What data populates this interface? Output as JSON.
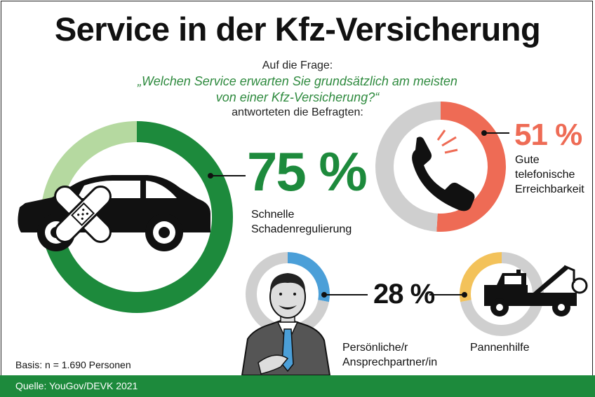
{
  "title": "Service in der Kfz-Versicherung",
  "question": {
    "intro": "Auf die Frage:",
    "line1": "„Welchen Service erwarten Sie grundsätzlich am meisten",
    "line2": "von einer Kfz-Versicherung?“",
    "outro": "antworteten die Befragten:"
  },
  "chart_data": {
    "type": "pie",
    "categories": [
      "Schnelle Schadenregulierung",
      "Gute telefonische Erreichbarkeit",
      "Persönliche/r Ansprechpartner/in",
      "Pannenhilfe"
    ],
    "values": [
      75,
      51,
      28,
      28
    ],
    "unit": "%"
  },
  "labels": {
    "p75": "75 %",
    "schaden1": "Schnelle",
    "schaden2": "Schadenregulierung",
    "p51": "51 %",
    "tel1": "Gute",
    "tel2": "telefonische",
    "tel3": "Erreichbarkeit",
    "p28": "28 %",
    "pers1": "Persönliche/r",
    "pers2": "Ansprechpartner/in",
    "panne": "Pannenhilfe"
  },
  "colors": {
    "green": "#1d8a3c",
    "green_light": "#b5d9a0",
    "red": "#ee6b55",
    "blue": "#4b9fd8",
    "yellow": "#f3c25a",
    "gray": "#cfcfcf"
  },
  "icons": [
    "car-bandage-icon",
    "phone-icon",
    "businessman-icon",
    "tow-truck-icon"
  ],
  "basis": "Basis: n = 1.690 Personen",
  "source": "Quelle: YouGov/DEVK 2021"
}
